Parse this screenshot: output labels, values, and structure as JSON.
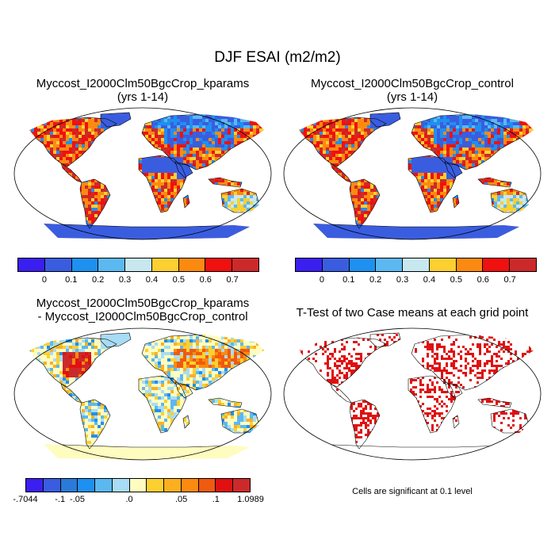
{
  "title": "DJF ESAI (m2/m2)",
  "panels": {
    "top_left": {
      "title_line1": "Myccost_I2000Clm50BgcCrop_kparams",
      "title_line2": "(yrs 1-14)"
    },
    "top_right": {
      "title_line1": "Myccost_I2000Clm50BgcCrop_control",
      "title_line2": "(yrs 1-14)"
    },
    "bottom_left": {
      "title_line1": "Myccost_I2000Clm50BgcCrop_kparams",
      "title_line2": "- Myccost_I2000Clm50BgcCrop_control"
    },
    "bottom_right": {
      "title_line1": "T-Test of two Case means at each grid point"
    }
  },
  "colorbar_abs": {
    "colors": [
      "#3a1ff0",
      "#3a5de0",
      "#1e90f0",
      "#5cb8f0",
      "#c8e8f0",
      "#fcd030",
      "#fc8a10",
      "#f01010",
      "#cc2a2a"
    ],
    "ticks": [
      "0",
      "0.1",
      "0.2",
      "0.3",
      "0.4",
      "0.5",
      "0.6",
      "0.7"
    ]
  },
  "colorbar_diff": {
    "colors": [
      "#3a1ff0",
      "#3a5de0",
      "#2a7ad8",
      "#1e90f0",
      "#5cb8f0",
      "#a8dcf4",
      "#fffcc0",
      "#fcd030",
      "#fcb020",
      "#fc8a10",
      "#f05a10",
      "#e01010",
      "#cc2a2a"
    ],
    "ticks": [
      "-.7044",
      "-.1",
      "-.05",
      ".0",
      ".05",
      ".1",
      "1.0989"
    ]
  },
  "ttest_note": "Cells are significant at 0.1 level",
  "map_colors": {
    "ocean": "#ffffff",
    "outline": "#000000",
    "antarctica_abs": "#3a5de0",
    "antarctica_diff": "#fff5b0",
    "signif": "#e01010"
  }
}
